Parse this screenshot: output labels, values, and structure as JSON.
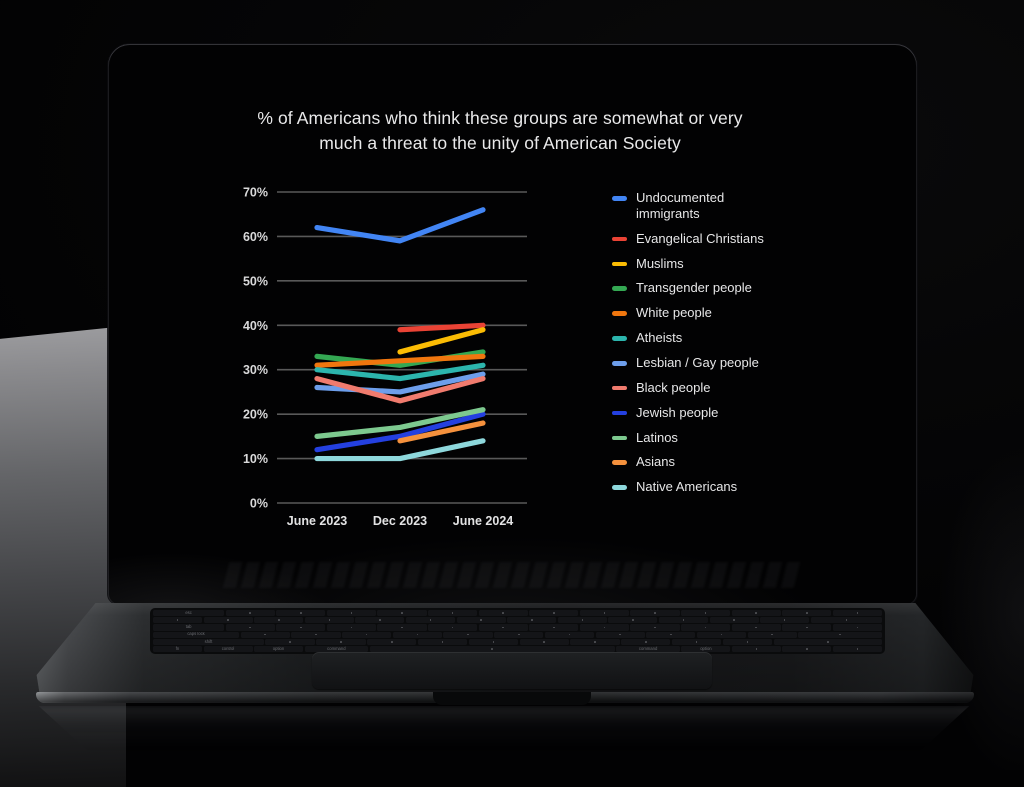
{
  "screen": {
    "title_lines": [
      "% of Americans who think these groups are somewhat or very",
      "much a threat to the unity of American Society"
    ]
  },
  "chart_data": {
    "type": "line",
    "title": "% of Americans who think these groups are somewhat or very much a threat to the unity of American Society",
    "categories": [
      "June 2023",
      "Dec 2023",
      "June 2024"
    ],
    "ylim": [
      0,
      70
    ],
    "yticks": [
      0,
      10,
      20,
      30,
      40,
      50,
      60,
      70
    ],
    "ytick_labels": [
      "0%",
      "10%",
      "20%",
      "30%",
      "40%",
      "50%",
      "60%",
      "70%"
    ],
    "grid": true,
    "legend_position": "right",
    "series": [
      {
        "name": "Undocumented immigrants",
        "color": "#4285f4",
        "values": [
          62,
          59,
          66
        ]
      },
      {
        "name": "Evangelical Christians",
        "color": "#ea4335",
        "values": [
          null,
          39,
          40
        ]
      },
      {
        "name": "Muslims",
        "color": "#fbbc04",
        "values": [
          null,
          34,
          39
        ]
      },
      {
        "name": "Transgender people",
        "color": "#34a853",
        "values": [
          33,
          31,
          34
        ]
      },
      {
        "name": "White people",
        "color": "#f0760e",
        "values": [
          31,
          32,
          33
        ]
      },
      {
        "name": "Atheists",
        "color": "#2cb5ad",
        "values": [
          30,
          28,
          31
        ]
      },
      {
        "name": "Lesbian / Gay people",
        "color": "#6d9eeb",
        "values": [
          26,
          25,
          29
        ]
      },
      {
        "name": "Black people",
        "color": "#f07b6e",
        "values": [
          28,
          23,
          28
        ]
      },
      {
        "name": "Jewish people",
        "color": "#2440e0",
        "values": [
          12,
          15,
          20
        ]
      },
      {
        "name": "Latinos",
        "color": "#7dc98f",
        "values": [
          15,
          17,
          21
        ]
      },
      {
        "name": "Asians",
        "color": "#f5913d",
        "values": [
          null,
          14,
          18
        ]
      },
      {
        "name": "Native Americans",
        "color": "#8ed8dc",
        "values": [
          10,
          10,
          14
        ]
      }
    ]
  },
  "keyboard": {
    "visible_key_labels": [
      "esc",
      "tab",
      "caps lock",
      "shift",
      "fn",
      "control",
      "option",
      "command"
    ]
  }
}
